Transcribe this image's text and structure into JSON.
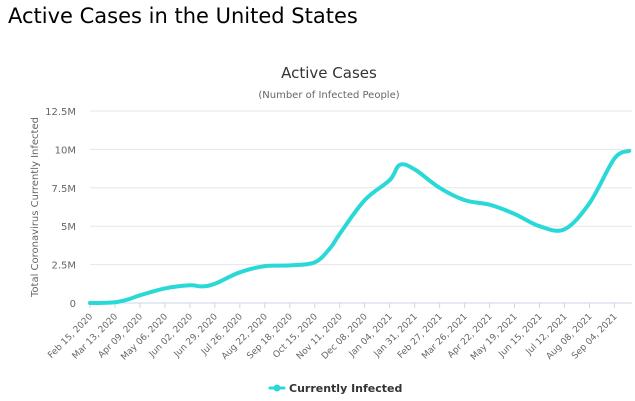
{
  "page": {
    "heading": "Active Cases in the United States"
  },
  "colors": {
    "series": "#2ad8d8",
    "grid": "#e6e6e6",
    "axis": "#ccd6eb"
  },
  "chart_data": {
    "type": "line",
    "title": "Active Cases",
    "subtitle": "(Number of Infected People)",
    "ylabel": "Total Coronavirus Currently Infected",
    "xlabel": "",
    "ylim": [
      0,
      12500000
    ],
    "y_ticks": [
      {
        "value": 0,
        "label": "0"
      },
      {
        "value": 2500000,
        "label": "2.5M"
      },
      {
        "value": 5000000,
        "label": "5M"
      },
      {
        "value": 7500000,
        "label": "7.5M"
      },
      {
        "value": 10000000,
        "label": "10M"
      },
      {
        "value": 12500000,
        "label": "12.5M"
      }
    ],
    "x_tick_labels": [
      "Feb 15, 2020",
      "Mar 13, 2020",
      "Apr 09, 2020",
      "May 06, 2020",
      "Jun 02, 2020",
      "Jun 29, 2020",
      "Jul 26, 2020",
      "Aug 22, 2020",
      "Sep 18, 2020",
      "Oct 15, 2020",
      "Nov 11, 2020",
      "Dec 08, 2020",
      "Jan 04, 2021",
      "Jan 31, 2021",
      "Feb 27, 2021",
      "Mar 26, 2021",
      "Apr 22, 2021",
      "May 19, 2021",
      "Jun 15, 2021",
      "Jul 12, 2021",
      "Aug 08, 2021",
      "Sep 04, 2021"
    ],
    "grid": true,
    "legend_position": "bottom-center",
    "series": [
      {
        "name": "Currently Infected",
        "points": [
          {
            "x": "Feb 15, 2020",
            "y": 0
          },
          {
            "x": "Mar 13, 2020",
            "y": 50000
          },
          {
            "x": "Mar 28, 2020",
            "y": 250000
          },
          {
            "x": "Apr 09, 2020",
            "y": 500000
          },
          {
            "x": "May 06, 2020",
            "y": 950000
          },
          {
            "x": "Jun 02, 2020",
            "y": 1150000
          },
          {
            "x": "Jun 15, 2020",
            "y": 1080000
          },
          {
            "x": "Jun 29, 2020",
            "y": 1250000
          },
          {
            "x": "Jul 26, 2020",
            "y": 2000000
          },
          {
            "x": "Aug 22, 2020",
            "y": 2400000
          },
          {
            "x": "Sep 18, 2020",
            "y": 2450000
          },
          {
            "x": "Oct 15, 2020",
            "y": 2650000
          },
          {
            "x": "Nov 01, 2020",
            "y": 3600000
          },
          {
            "x": "Nov 11, 2020",
            "y": 4500000
          },
          {
            "x": "Dec 08, 2020",
            "y": 6700000
          },
          {
            "x": "Jan 04, 2021",
            "y": 8000000
          },
          {
            "x": "Jan 15, 2021",
            "y": 9000000
          },
          {
            "x": "Jan 31, 2021",
            "y": 8700000
          },
          {
            "x": "Feb 27, 2021",
            "y": 7500000
          },
          {
            "x": "Mar 26, 2021",
            "y": 6700000
          },
          {
            "x": "Apr 22, 2021",
            "y": 6400000
          },
          {
            "x": "May 19, 2021",
            "y": 5800000
          },
          {
            "x": "Jun 15, 2021",
            "y": 5000000
          },
          {
            "x": "Jul 12, 2021",
            "y": 4800000
          },
          {
            "x": "Aug 08, 2021",
            "y": 6500000
          },
          {
            "x": "Sep 04, 2021",
            "y": 9400000
          },
          {
            "x": "Sep 20, 2021",
            "y": 9900000
          }
        ]
      }
    ]
  }
}
